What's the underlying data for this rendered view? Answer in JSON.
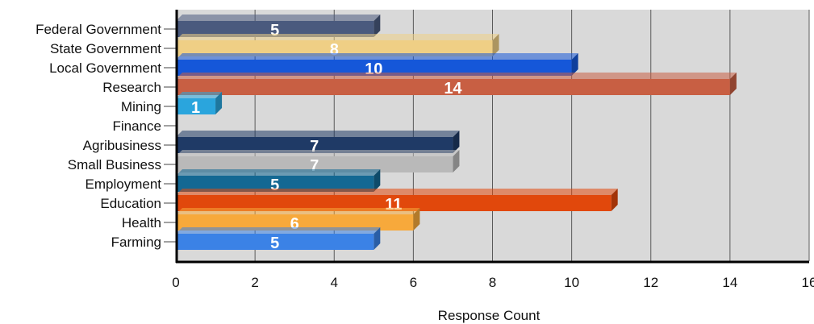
{
  "chart_data": {
    "type": "bar",
    "orientation": "horizontal",
    "categories": [
      "Federal Government",
      "State Government",
      "Local Government",
      "Research",
      "Mining",
      "Finance",
      "Agribusiness",
      "Small Business",
      "Employment",
      "Education",
      "Health",
      "Farming"
    ],
    "values": [
      5,
      8,
      10,
      14,
      1,
      0,
      7,
      7,
      5,
      11,
      6,
      5
    ],
    "value_labels": [
      "5",
      "8",
      "10",
      "14",
      "1",
      "",
      "7",
      "7",
      "5",
      "11",
      "6",
      "5"
    ],
    "colors": [
      "#4a5a7e",
      "#efcf85",
      "#1557d9",
      "#c85f43",
      "#2aa5dd",
      "#2aa5dd",
      "#1f3a66",
      "#b9b9b9",
      "#136893",
      "#e1480c",
      "#f7a93b",
      "#3b82e6"
    ],
    "xlabel": "Response Count",
    "xlim": [
      0,
      16
    ],
    "xticks": [
      "0",
      "2",
      "4",
      "6",
      "8",
      "10",
      "12",
      "14",
      "16"
    ],
    "grid": true,
    "plot_background": "#d9d9d9"
  }
}
